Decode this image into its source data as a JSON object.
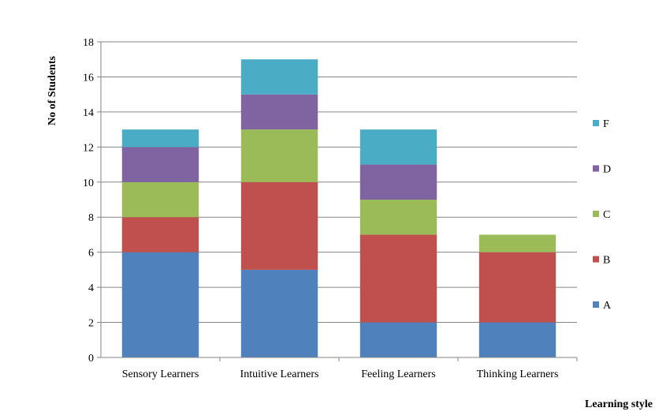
{
  "chart_data": {
    "type": "bar",
    "stacked": true,
    "categories": [
      "Sensory Learners",
      "Intuitive Learners",
      "Feeling Learners",
      "Thinking Learners"
    ],
    "series": [
      {
        "name": "A",
        "color": "#4f81bd",
        "values": [
          6,
          5,
          2,
          2
        ]
      },
      {
        "name": "B",
        "color": "#c0504d",
        "values": [
          2,
          5,
          5,
          4
        ]
      },
      {
        "name": "C",
        "color": "#9bbb59",
        "values": [
          2,
          3,
          2,
          1
        ]
      },
      {
        "name": "D",
        "color": "#8064a2",
        "values": [
          2,
          2,
          2,
          0
        ]
      },
      {
        "name": "F",
        "color": "#4bacc6",
        "values": [
          1,
          2,
          2,
          0
        ]
      }
    ],
    "xlabel": "Learning style",
    "ylabel": "No of Students",
    "ylim": [
      0,
      18
    ],
    "ytick_step": 2,
    "grid": true,
    "legend_position": "right"
  }
}
